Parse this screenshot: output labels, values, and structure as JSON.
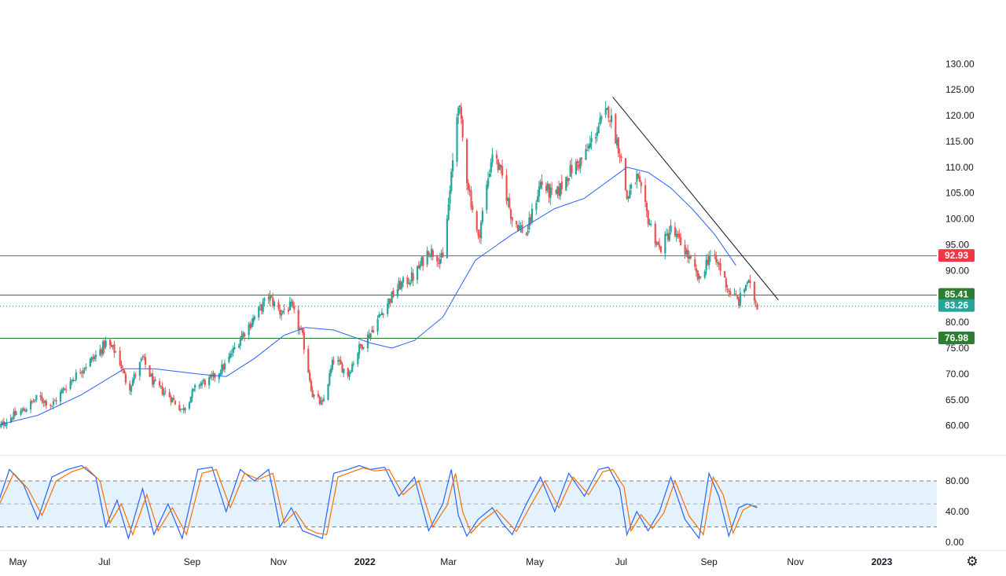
{
  "chart_data": [
    {
      "type": "candlestick",
      "title": "",
      "ylim": [
        56,
        134
      ],
      "y_ticks": [
        "130.00",
        "125.00",
        "120.00",
        "115.00",
        "110.00",
        "105.00",
        "100.00",
        "95.00",
        "90.00",
        "85.00",
        "80.00",
        "75.00",
        "70.00",
        "65.00",
        "60.00"
      ],
      "x_ticks": [
        "May",
        "Jul",
        "Sep",
        "Nov",
        "2022",
        "Mar",
        "May",
        "Jul",
        "Sep",
        "Nov",
        "2023"
      ],
      "x_range": [
        "2021-04-15",
        "2023-01-31"
      ],
      "series": [
        {
          "kind": "close_path",
          "points": [
            [
              "2021-04-15",
              59
            ],
            [
              "2021-04-25",
              61.5
            ],
            [
              "2021-05-05",
              63
            ],
            [
              "2021-05-15",
              65.5
            ],
            [
              "2021-05-25",
              64
            ],
            [
              "2021-06-05",
              68
            ],
            [
              "2021-06-15",
              71
            ],
            [
              "2021-06-25",
              73.5
            ],
            [
              "2021-07-02",
              76
            ],
            [
              "2021-07-10",
              74
            ],
            [
              "2021-07-18",
              67
            ],
            [
              "2021-07-28",
              73
            ],
            [
              "2021-08-05",
              68
            ],
            [
              "2021-08-15",
              66
            ],
            [
              "2021-08-25",
              63
            ],
            [
              "2021-09-05",
              68
            ],
            [
              "2021-09-15",
              69
            ],
            [
              "2021-09-25",
              72
            ],
            [
              "2021-10-05",
              77
            ],
            [
              "2021-10-15",
              81
            ],
            [
              "2021-10-25",
              85
            ],
            [
              "2021-11-02",
              82
            ],
            [
              "2021-11-10",
              83
            ],
            [
              "2021-11-18",
              77
            ],
            [
              "2021-11-25",
              66
            ],
            [
              "2021-12-02",
              64
            ],
            [
              "2021-12-10",
              73
            ],
            [
              "2021-12-20",
              70
            ],
            [
              "2021-12-28",
              75
            ],
            [
              "2022-01-05",
              78
            ],
            [
              "2022-01-15",
              83
            ],
            [
              "2022-01-25",
              87
            ],
            [
              "2022-02-05",
              89
            ],
            [
              "2022-02-15",
              94
            ],
            [
              "2022-02-25",
              92
            ],
            [
              "2022-03-03",
              108
            ],
            [
              "2022-03-08",
              123
            ],
            [
              "2022-03-14",
              108
            ],
            [
              "2022-03-22",
              96
            ],
            [
              "2022-04-01",
              113
            ],
            [
              "2022-04-08",
              108
            ],
            [
              "2022-04-15",
              100
            ],
            [
              "2022-04-25",
              97
            ],
            [
              "2022-05-05",
              107
            ],
            [
              "2022-05-15",
              104
            ],
            [
              "2022-05-25",
              109
            ],
            [
              "2022-06-05",
              112
            ],
            [
              "2022-06-15",
              118
            ],
            [
              "2022-06-22",
              121
            ],
            [
              "2022-06-30",
              113
            ],
            [
              "2022-07-05",
              104
            ],
            [
              "2022-07-12",
              108
            ],
            [
              "2022-07-20",
              100
            ],
            [
              "2022-07-28",
              94
            ],
            [
              "2022-08-05",
              98
            ],
            [
              "2022-08-15",
              94
            ],
            [
              "2022-08-25",
              88
            ],
            [
              "2022-09-01",
              93
            ],
            [
              "2022-09-08",
              91
            ],
            [
              "2022-09-15",
              86
            ],
            [
              "2022-09-22",
              84
            ],
            [
              "2022-09-28",
              88
            ],
            [
              "2022-10-05",
              83.26
            ]
          ]
        },
        {
          "kind": "moving_average",
          "color": "#2962ff",
          "points": [
            [
              "2021-04-15",
              60
            ],
            [
              "2021-05-15",
              62
            ],
            [
              "2021-06-15",
              66
            ],
            [
              "2021-07-15",
              71
            ],
            [
              "2021-08-05",
              71
            ],
            [
              "2021-09-05",
              70
            ],
            [
              "2021-09-25",
              69.5
            ],
            [
              "2021-10-15",
              73
            ],
            [
              "2021-11-05",
              77.5
            ],
            [
              "2021-11-20",
              79
            ],
            [
              "2021-12-10",
              78.5
            ],
            [
              "2022-01-05",
              76
            ],
            [
              "2022-01-20",
              75
            ],
            [
              "2022-02-05",
              76.5
            ],
            [
              "2022-02-25",
              81
            ],
            [
              "2022-03-20",
              92
            ],
            [
              "2022-04-15",
              97
            ],
            [
              "2022-05-15",
              102
            ],
            [
              "2022-06-05",
              104
            ],
            [
              "2022-06-20",
              107
            ],
            [
              "2022-07-05",
              110
            ],
            [
              "2022-07-20",
              109
            ],
            [
              "2022-08-05",
              106
            ],
            [
              "2022-08-20",
              102
            ],
            [
              "2022-09-05",
              97
            ],
            [
              "2022-09-20",
              91
            ]
          ]
        },
        {
          "kind": "trendline",
          "color": "#131722",
          "points": [
            [
              "2022-06-25",
              123.6
            ],
            [
              "2022-10-20",
              84.3
            ]
          ]
        }
      ],
      "levels": [
        {
          "value": 92.93,
          "label": "92.93",
          "color": "#f23645",
          "line": "solid"
        },
        {
          "value": 85.41,
          "label": "85.41",
          "color": "#2e7d32",
          "line": "solid"
        },
        {
          "value": 83.26,
          "label": "83.26",
          "color": "#26a69a",
          "line": "dotted"
        },
        {
          "value": 76.98,
          "label": "76.98",
          "color": "#2e7d32",
          "line": "solid"
        }
      ],
      "colors": {
        "up": "#26a69a",
        "down": "#ef5350",
        "axis_text": "#131722",
        "grid": "#e0e3eb"
      }
    },
    {
      "type": "line",
      "title": "",
      "ylim": [
        0,
        100
      ],
      "y_ticks": [
        "80.00",
        "40.00",
        "0.00"
      ],
      "bands": {
        "upper": 80,
        "middle": 50,
        "lower": 20,
        "fill": "#e3f2fd"
      },
      "series": [
        {
          "kind": "k_line",
          "color": "#2962ff",
          "points": [
            [
              "2021-04-15",
              40
            ],
            [
              "2021-04-25",
              95
            ],
            [
              "2021-05-05",
              75
            ],
            [
              "2021-05-15",
              30
            ],
            [
              "2021-05-25",
              85
            ],
            [
              "2021-06-05",
              95
            ],
            [
              "2021-06-15",
              100
            ],
            [
              "2021-06-25",
              85
            ],
            [
              "2021-07-02",
              20
            ],
            [
              "2021-07-10",
              55
            ],
            [
              "2021-07-18",
              5
            ],
            [
              "2021-07-28",
              70
            ],
            [
              "2021-08-05",
              10
            ],
            [
              "2021-08-15",
              50
            ],
            [
              "2021-08-25",
              5
            ],
            [
              "2021-09-05",
              95
            ],
            [
              "2021-09-15",
              98
            ],
            [
              "2021-09-25",
              40
            ],
            [
              "2021-10-05",
              95
            ],
            [
              "2021-10-15",
              80
            ],
            [
              "2021-10-25",
              95
            ],
            [
              "2021-11-02",
              20
            ],
            [
              "2021-11-10",
              45
            ],
            [
              "2021-11-18",
              15
            ],
            [
              "2021-11-25",
              10
            ],
            [
              "2021-12-02",
              5
            ],
            [
              "2021-12-10",
              90
            ],
            [
              "2021-12-20",
              95
            ],
            [
              "2021-12-28",
              100
            ],
            [
              "2022-01-05",
              95
            ],
            [
              "2022-01-15",
              98
            ],
            [
              "2022-01-25",
              60
            ],
            [
              "2022-02-05",
              85
            ],
            [
              "2022-02-15",
              15
            ],
            [
              "2022-02-25",
              50
            ],
            [
              "2022-03-03",
              95
            ],
            [
              "2022-03-08",
              35
            ],
            [
              "2022-03-14",
              8
            ],
            [
              "2022-03-22",
              30
            ],
            [
              "2022-04-01",
              45
            ],
            [
              "2022-04-08",
              25
            ],
            [
              "2022-04-15",
              10
            ],
            [
              "2022-04-25",
              50
            ],
            [
              "2022-05-05",
              85
            ],
            [
              "2022-05-15",
              40
            ],
            [
              "2022-05-25",
              90
            ],
            [
              "2022-06-05",
              60
            ],
            [
              "2022-06-15",
              95
            ],
            [
              "2022-06-22",
              98
            ],
            [
              "2022-06-30",
              70
            ],
            [
              "2022-07-05",
              10
            ],
            [
              "2022-07-12",
              40
            ],
            [
              "2022-07-20",
              15
            ],
            [
              "2022-07-28",
              40
            ],
            [
              "2022-08-05",
              85
            ],
            [
              "2022-08-15",
              30
            ],
            [
              "2022-08-25",
              5
            ],
            [
              "2022-09-01",
              90
            ],
            [
              "2022-09-08",
              60
            ],
            [
              "2022-09-15",
              8
            ],
            [
              "2022-09-22",
              45
            ],
            [
              "2022-09-28",
              50
            ],
            [
              "2022-10-05",
              45
            ]
          ]
        },
        {
          "kind": "d_line",
          "color": "#ff6d00",
          "points": [
            [
              "2021-04-15",
              38
            ],
            [
              "2021-04-28",
              90
            ],
            [
              "2021-05-08",
              70
            ],
            [
              "2021-05-18",
              35
            ],
            [
              "2021-05-28",
              80
            ],
            [
              "2021-06-08",
              92
            ],
            [
              "2021-06-18",
              98
            ],
            [
              "2021-06-28",
              80
            ],
            [
              "2021-07-05",
              25
            ],
            [
              "2021-07-13",
              50
            ],
            [
              "2021-07-21",
              10
            ],
            [
              "2021-07-31",
              62
            ],
            [
              "2021-08-08",
              15
            ],
            [
              "2021-08-18",
              45
            ],
            [
              "2021-08-28",
              10
            ],
            [
              "2021-09-08",
              90
            ],
            [
              "2021-09-18",
              95
            ],
            [
              "2021-09-28",
              45
            ],
            [
              "2021-10-08",
              90
            ],
            [
              "2021-10-18",
              82
            ],
            [
              "2021-10-28",
              90
            ],
            [
              "2021-11-05",
              25
            ],
            [
              "2021-11-13",
              40
            ],
            [
              "2021-11-21",
              18
            ],
            [
              "2021-11-28",
              12
            ],
            [
              "2021-12-05",
              10
            ],
            [
              "2021-12-13",
              85
            ],
            [
              "2021-12-23",
              92
            ],
            [
              "2021-12-31",
              97
            ],
            [
              "2022-01-08",
              93
            ],
            [
              "2022-01-18",
              95
            ],
            [
              "2022-01-28",
              62
            ],
            [
              "2022-02-08",
              80
            ],
            [
              "2022-02-18",
              20
            ],
            [
              "2022-02-28",
              48
            ],
            [
              "2022-03-06",
              90
            ],
            [
              "2022-03-11",
              40
            ],
            [
              "2022-03-17",
              12
            ],
            [
              "2022-03-25",
              28
            ],
            [
              "2022-04-04",
              42
            ],
            [
              "2022-04-11",
              28
            ],
            [
              "2022-04-18",
              14
            ],
            [
              "2022-04-28",
              48
            ],
            [
              "2022-05-08",
              80
            ],
            [
              "2022-05-18",
              45
            ],
            [
              "2022-05-28",
              85
            ],
            [
              "2022-06-08",
              62
            ],
            [
              "2022-06-18",
              92
            ],
            [
              "2022-06-25",
              95
            ],
            [
              "2022-07-03",
              72
            ],
            [
              "2022-07-08",
              15
            ],
            [
              "2022-07-15",
              36
            ],
            [
              "2022-07-23",
              18
            ],
            [
              "2022-07-31",
              38
            ],
            [
              "2022-08-08",
              80
            ],
            [
              "2022-08-18",
              34
            ],
            [
              "2022-08-28",
              10
            ],
            [
              "2022-09-04",
              85
            ],
            [
              "2022-09-11",
              62
            ],
            [
              "2022-09-18",
              12
            ],
            [
              "2022-09-25",
              42
            ],
            [
              "2022-10-01",
              48
            ],
            [
              "2022-10-05",
              47
            ]
          ]
        }
      ]
    }
  ]
}
